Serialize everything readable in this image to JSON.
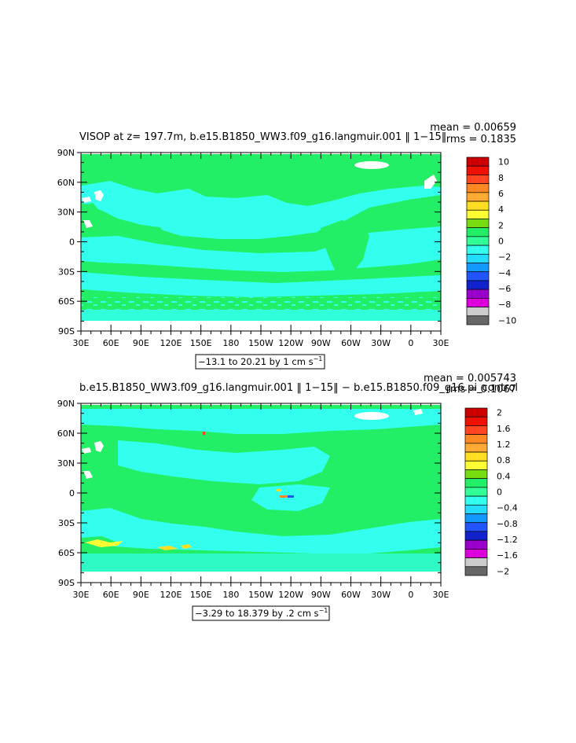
{
  "chart_data": [
    {
      "type": "heatmap",
      "title": "VISOP at z= 197.7m, b.e15.B1850_WW3.f09_g16.langmuir.001 ‖ 1−15‖",
      "stat_mean": "mean = 0.00659",
      "stat_rms": "rms = 0.1835",
      "range_note": "−13.1 to 20.21 by 1 cm s",
      "range_unit_exp": "−1",
      "x_ticks": [
        "30E",
        "60E",
        "90E",
        "120E",
        "150E",
        "180",
        "150W",
        "120W",
        "90W",
        "60W",
        "30W",
        "0",
        "30E"
      ],
      "y_ticks": [
        "90N",
        "60N",
        "30N",
        "0",
        "30S",
        "60S",
        "90S"
      ],
      "colorbar_labels": [
        "10",
        "8",
        "6",
        "4",
        "2",
        "0",
        "−2",
        "−4",
        "−6",
        "−8",
        "−10"
      ],
      "colorbar_colors": [
        "#cc0000",
        "#ee1100",
        "#ff4422",
        "#ff8822",
        "#ffaa33",
        "#ffdd22",
        "#ffff33",
        "#77dd11",
        "#22ee66",
        "#33ff99",
        "#33ffee",
        "#22ddff",
        "#1199ff",
        "#2255ff",
        "#1122cc",
        "#9900cc",
        "#dd00dd",
        "#cccccc",
        "#666666"
      ],
      "dominant_value_range": [
        -2,
        2
      ],
      "ocean_colors": [
        "#22ee66",
        "#33ffee"
      ]
    },
    {
      "type": "heatmap",
      "title": "b.e15.B1850_WW3.f09_g16.langmuir.001 ‖ 1−15‖ − b.e15.B1850.f09_g16.pi_control",
      "stat_mean": "mean = 0.005743",
      "stat_rms": "rms = 0.1067",
      "range_note": "−3.29 to 18.379 by .2 cm s",
      "range_unit_exp": "−1",
      "x_ticks": [
        "30E",
        "60E",
        "90E",
        "120E",
        "150E",
        "180",
        "150W",
        "120W",
        "90W",
        "60W",
        "30W",
        "0",
        "30E"
      ],
      "y_ticks": [
        "90N",
        "60N",
        "30N",
        "0",
        "30S",
        "60S",
        "90S"
      ],
      "colorbar_labels": [
        "2",
        "1.6",
        "1.2",
        "0.8",
        "0.4",
        "0",
        "−0.4",
        "−0.8",
        "−1.2",
        "−1.6",
        "−2"
      ],
      "colorbar_colors": [
        "#cc0000",
        "#ee1100",
        "#ff4422",
        "#ff8822",
        "#ffaa33",
        "#ffdd22",
        "#ffff33",
        "#77dd11",
        "#22ee66",
        "#33ff99",
        "#33ffee",
        "#22ddff",
        "#1199ff",
        "#2255ff",
        "#1122cc",
        "#9900cc",
        "#dd00dd",
        "#cccccc",
        "#666666"
      ],
      "dominant_value_range": [
        -0.4,
        0.4
      ],
      "ocean_colors": [
        "#22ee66",
        "#33ffee"
      ]
    }
  ]
}
